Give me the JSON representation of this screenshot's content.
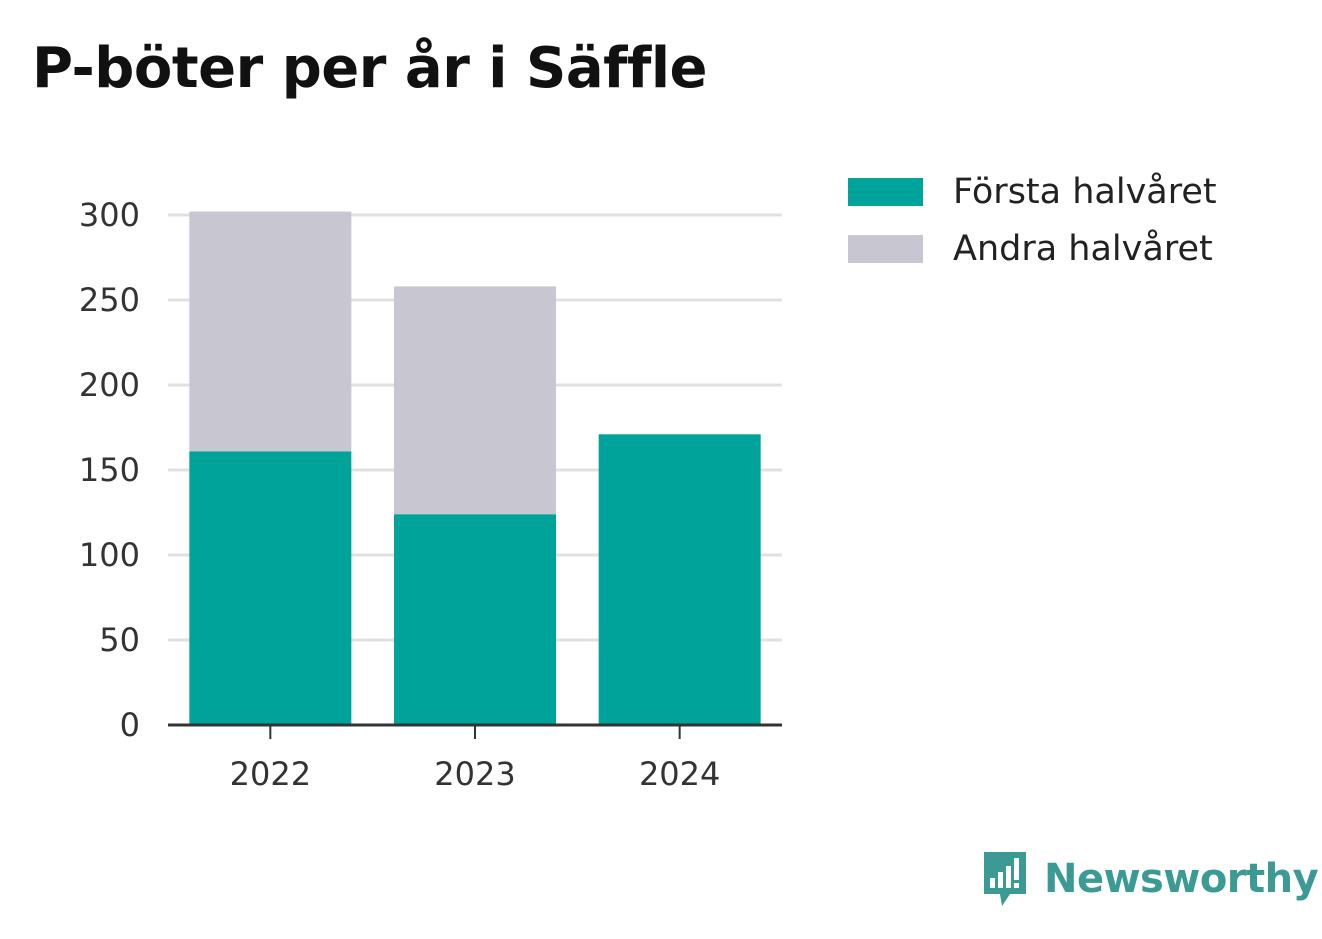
{
  "title": "P-böter per år i Säffle",
  "colors": {
    "first_half": "#00a39a",
    "second_half": "#c8c7d1",
    "grid": "#e0e0e0",
    "axis": "#333333",
    "brand": "#3b9a94"
  },
  "legend": [
    {
      "label": "Första halvåret",
      "color": "#00a39a"
    },
    {
      "label": "Andra halvåret",
      "color": "#c8c7d1"
    }
  ],
  "brand": {
    "name": "Newsworthy",
    "icon": "newsworthy-logo-icon"
  },
  "chart_data": {
    "type": "bar",
    "stacked": true,
    "categories": [
      "2022",
      "2023",
      "2024"
    ],
    "series": [
      {
        "name": "Första halvåret",
        "values": [
          161,
          124,
          171
        ],
        "color": "#00a39a"
      },
      {
        "name": "Andra halvåret",
        "values": [
          141,
          134,
          0
        ],
        "color": "#c8c7d1"
      }
    ],
    "ylim": [
      0,
      300
    ],
    "yticks": [
      0,
      50,
      100,
      150,
      200,
      250,
      300
    ],
    "grid": true,
    "legend_position": "top-right"
  }
}
